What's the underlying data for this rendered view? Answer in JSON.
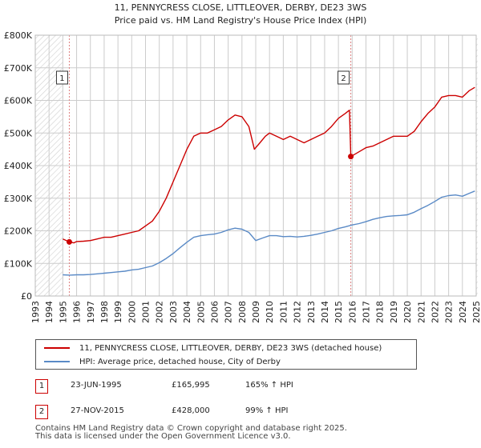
{
  "title": {
    "line1": "11, PENNYCRESS CLOSE, LITTLEOVER, DERBY, DE23 3WS",
    "line2": "Price paid vs. HM Land Registry's House Price Index (HPI)"
  },
  "colors": {
    "property_line": "#cc0000",
    "hpi_line": "#5a8ac6",
    "hatch": "#d0d0d0",
    "grid": "#cccccc",
    "marker_dash": "#e08080"
  },
  "legend": {
    "property_label": "11, PENNYCRESS CLOSE, LITTLEOVER, DERBY, DE23 3WS (detached house)",
    "hpi_label": "HPI: Average price, detached house, City of Derby"
  },
  "sales": [
    {
      "num": "1",
      "date": "23-JUN-1995",
      "price": "£165,995",
      "hpi": "165% ↑ HPI"
    },
    {
      "num": "2",
      "date": "27-NOV-2015",
      "price": "£428,000",
      "hpi": "99% ↑ HPI"
    }
  ],
  "footer": {
    "line1": "Contains HM Land Registry data © Crown copyright and database right 2025.",
    "line2": "This data is licensed under the Open Government Licence v3.0."
  },
  "chart_data": {
    "type": "line",
    "title": "11, PENNYCRESS CLOSE, LITTLEOVER, DERBY, DE23 3WS — Price paid vs. HM Land Registry's House Price Index (HPI)",
    "xlabel": "",
    "ylabel": "",
    "xlim": [
      1993,
      2025
    ],
    "ylim": [
      0,
      800000
    ],
    "x_ticks": [
      "1993",
      "1994",
      "1995",
      "1996",
      "1997",
      "1998",
      "1999",
      "2000",
      "2001",
      "2002",
      "2003",
      "2004",
      "2005",
      "2006",
      "2007",
      "2008",
      "2009",
      "2010",
      "2011",
      "2012",
      "2013",
      "2014",
      "2015",
      "2016",
      "2017",
      "2018",
      "2019",
      "2020",
      "2021",
      "2022",
      "2023",
      "2024",
      "2025"
    ],
    "y_ticks": [
      {
        "value": 0,
        "label": "£0"
      },
      {
        "value": 100000,
        "label": "£100K"
      },
      {
        "value": 200000,
        "label": "£200K"
      },
      {
        "value": 300000,
        "label": "£300K"
      },
      {
        "value": 400000,
        "label": "£400K"
      },
      {
        "value": 500000,
        "label": "£500K"
      },
      {
        "value": 600000,
        "label": "£600K"
      },
      {
        "value": 700000,
        "label": "£700K"
      },
      {
        "value": 800000,
        "label": "£800K"
      }
    ],
    "hatched_ranges": [
      [
        1993,
        1995.0
      ],
      [
        2025.0,
        2025.1
      ]
    ],
    "markers": [
      {
        "label": "1",
        "x": 1995.47,
        "y": 165995
      },
      {
        "label": "2",
        "x": 2015.9,
        "y": 428000
      }
    ],
    "series": [
      {
        "name": "11, PENNYCRESS CLOSE, LITTLEOVER, DERBY, DE23 3WS (detached house)",
        "points": [
          [
            1995.0,
            175000
          ],
          [
            1995.47,
            165995
          ],
          [
            1995.8,
            163000
          ],
          [
            1996.0,
            167000
          ],
          [
            1996.5,
            168000
          ],
          [
            1997.0,
            170000
          ],
          [
            1997.5,
            175000
          ],
          [
            1998.0,
            180000
          ],
          [
            1998.5,
            180000
          ],
          [
            1999.0,
            185000
          ],
          [
            1999.5,
            190000
          ],
          [
            2000.0,
            195000
          ],
          [
            2000.5,
            200000
          ],
          [
            2001.0,
            215000
          ],
          [
            2001.5,
            230000
          ],
          [
            2002.0,
            260000
          ],
          [
            2002.5,
            300000
          ],
          [
            2003.0,
            350000
          ],
          [
            2003.5,
            400000
          ],
          [
            2004.0,
            450000
          ],
          [
            2004.5,
            490000
          ],
          [
            2005.0,
            500000
          ],
          [
            2005.5,
            500000
          ],
          [
            2006.0,
            510000
          ],
          [
            2006.5,
            520000
          ],
          [
            2007.0,
            540000
          ],
          [
            2007.5,
            555000
          ],
          [
            2008.0,
            550000
          ],
          [
            2008.5,
            520000
          ],
          [
            2008.9,
            450000
          ],
          [
            2009.3,
            470000
          ],
          [
            2009.7,
            490000
          ],
          [
            2010.0,
            500000
          ],
          [
            2010.5,
            490000
          ],
          [
            2011.0,
            480000
          ],
          [
            2011.5,
            490000
          ],
          [
            2012.0,
            480000
          ],
          [
            2012.5,
            470000
          ],
          [
            2013.0,
            480000
          ],
          [
            2013.5,
            490000
          ],
          [
            2014.0,
            500000
          ],
          [
            2014.5,
            520000
          ],
          [
            2015.0,
            545000
          ],
          [
            2015.5,
            560000
          ],
          [
            2015.8,
            570000
          ],
          [
            2015.9,
            428000
          ],
          [
            2016.2,
            435000
          ],
          [
            2016.6,
            445000
          ],
          [
            2017.0,
            455000
          ],
          [
            2017.5,
            460000
          ],
          [
            2018.0,
            470000
          ],
          [
            2018.5,
            480000
          ],
          [
            2019.0,
            490000
          ],
          [
            2019.5,
            490000
          ],
          [
            2020.0,
            490000
          ],
          [
            2020.5,
            505000
          ],
          [
            2021.0,
            535000
          ],
          [
            2021.5,
            560000
          ],
          [
            2022.0,
            580000
          ],
          [
            2022.5,
            610000
          ],
          [
            2023.0,
            615000
          ],
          [
            2023.5,
            615000
          ],
          [
            2024.0,
            610000
          ],
          [
            2024.5,
            630000
          ],
          [
            2024.9,
            640000
          ]
        ]
      },
      {
        "name": "HPI: Average price, detached house, City of Derby",
        "points": [
          [
            1995.0,
            65000
          ],
          [
            1995.5,
            64000
          ],
          [
            1996.0,
            65000
          ],
          [
            1996.5,
            65000
          ],
          [
            1997.0,
            66000
          ],
          [
            1997.5,
            68000
          ],
          [
            1998.0,
            70000
          ],
          [
            1998.5,
            72000
          ],
          [
            1999.0,
            74000
          ],
          [
            1999.5,
            76000
          ],
          [
            2000.0,
            80000
          ],
          [
            2000.5,
            82000
          ],
          [
            2001.0,
            87000
          ],
          [
            2001.5,
            92000
          ],
          [
            2002.0,
            102000
          ],
          [
            2002.5,
            115000
          ],
          [
            2003.0,
            130000
          ],
          [
            2003.5,
            148000
          ],
          [
            2004.0,
            165000
          ],
          [
            2004.5,
            180000
          ],
          [
            2005.0,
            185000
          ],
          [
            2005.5,
            188000
          ],
          [
            2006.0,
            190000
          ],
          [
            2006.5,
            195000
          ],
          [
            2007.0,
            203000
          ],
          [
            2007.5,
            208000
          ],
          [
            2008.0,
            205000
          ],
          [
            2008.5,
            195000
          ],
          [
            2009.0,
            170000
          ],
          [
            2009.5,
            178000
          ],
          [
            2010.0,
            185000
          ],
          [
            2010.5,
            185000
          ],
          [
            2011.0,
            182000
          ],
          [
            2011.5,
            183000
          ],
          [
            2012.0,
            181000
          ],
          [
            2012.5,
            183000
          ],
          [
            2013.0,
            186000
          ],
          [
            2013.5,
            190000
          ],
          [
            2014.0,
            195000
          ],
          [
            2014.5,
            200000
          ],
          [
            2015.0,
            207000
          ],
          [
            2015.5,
            212000
          ],
          [
            2016.0,
            218000
          ],
          [
            2016.5,
            222000
          ],
          [
            2017.0,
            228000
          ],
          [
            2017.5,
            235000
          ],
          [
            2018.0,
            240000
          ],
          [
            2018.5,
            244000
          ],
          [
            2019.0,
            246000
          ],
          [
            2019.5,
            247000
          ],
          [
            2020.0,
            249000
          ],
          [
            2020.5,
            257000
          ],
          [
            2021.0,
            268000
          ],
          [
            2021.5,
            278000
          ],
          [
            2022.0,
            290000
          ],
          [
            2022.5,
            303000
          ],
          [
            2023.0,
            308000
          ],
          [
            2023.5,
            310000
          ],
          [
            2024.0,
            306000
          ],
          [
            2024.5,
            315000
          ],
          [
            2024.9,
            322000
          ]
        ]
      }
    ]
  }
}
